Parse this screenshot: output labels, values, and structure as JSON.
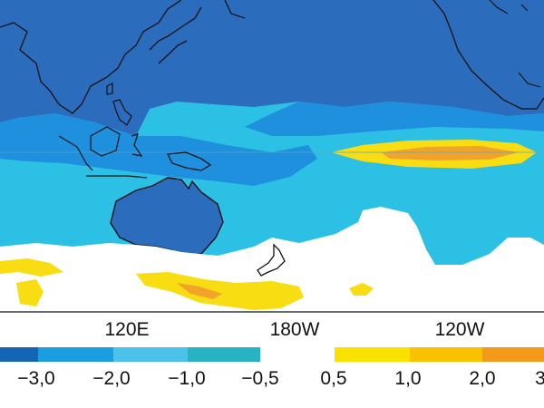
{
  "map": {
    "longitude_labels": [
      "120E",
      "180W",
      "120W"
    ],
    "colorbar": {
      "colors": [
        "#1565b5",
        "#1a9ee0",
        "#4cc1ea",
        "#27b3c3",
        "#ffffff",
        "#fae200",
        "#f8c200",
        "#f39a1a"
      ],
      "labels": [
        "−3,0",
        "−2,0",
        "−1,0",
        "−0,5",
        "0,5",
        "1,0",
        "2,0",
        "3"
      ]
    },
    "field_colors": {
      "strong_negative": "#2c6cbc",
      "moderate_negative": "#1e90dd",
      "weak_negative": "#2cc0e4",
      "near_zero": "#ffffff",
      "positive": "#f7dd12",
      "strong_positive": "#f2a32a",
      "coastline": "#111111"
    }
  }
}
